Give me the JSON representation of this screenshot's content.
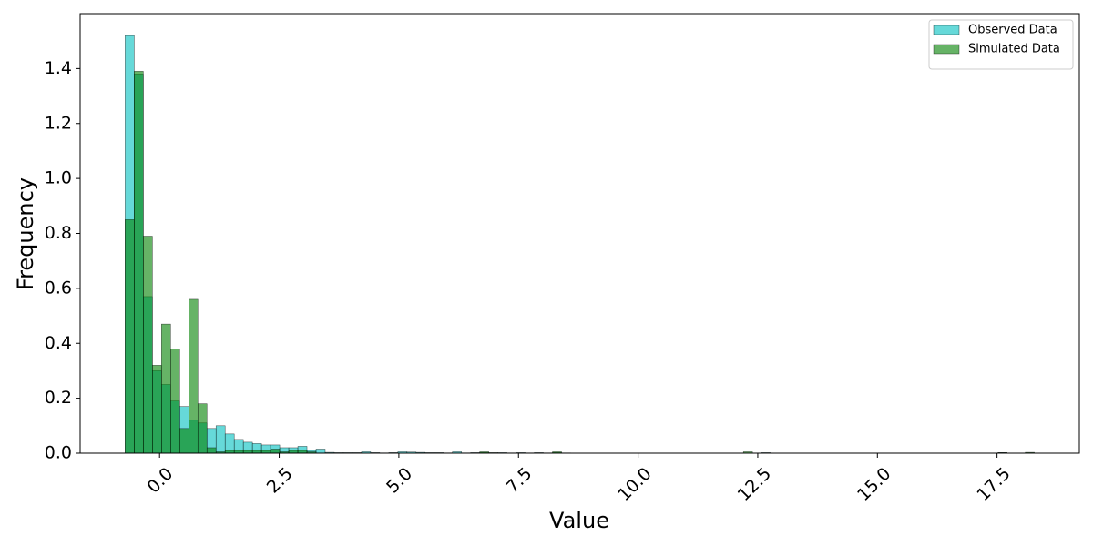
{
  "chart_data": {
    "type": "histogram",
    "x_label": "Value",
    "y_label": "Frequency",
    "bins": [
      -0.72,
      -0.53,
      -0.34,
      -0.15,
      0.04,
      0.23,
      0.42,
      0.61,
      0.8,
      0.99,
      1.18,
      1.37,
      1.56,
      1.75,
      1.94,
      2.13,
      2.32,
      2.51,
      2.7,
      2.89,
      3.08,
      3.27,
      3.46,
      3.65,
      3.84,
      4.03,
      4.22,
      4.41,
      4.6,
      4.79,
      4.98,
      5.17,
      5.36,
      5.55,
      5.74,
      5.93,
      6.12,
      6.31,
      6.5,
      6.69,
      6.88,
      7.07,
      7.26,
      7.45,
      7.64,
      7.83,
      8.02,
      8.21,
      8.4,
      8.59,
      8.78,
      8.97,
      9.16,
      9.35,
      9.54,
      9.73,
      9.92,
      10.11,
      10.3,
      10.49,
      10.68,
      10.87,
      11.06,
      11.25,
      11.44,
      11.63,
      11.82,
      12.01,
      12.2,
      12.39,
      12.58,
      12.77,
      12.96,
      13.15,
      13.34,
      13.53,
      13.72,
      13.91,
      14.1,
      14.29,
      14.48,
      14.67,
      14.86,
      15.05,
      15.24,
      15.43,
      15.62,
      15.81,
      16.0,
      16.19,
      16.38,
      16.57,
      16.76,
      16.95,
      17.14,
      17.33,
      17.52,
      17.71,
      17.9,
      18.09,
      18.28
    ],
    "series": [
      {
        "name": "Observed Data",
        "color": "#00bfbf",
        "values": [
          1.52,
          1.38,
          0.57,
          0.3,
          0.25,
          0.19,
          0.17,
          0.12,
          0.11,
          0.09,
          0.1,
          0.07,
          0.05,
          0.04,
          0.035,
          0.03,
          0.03,
          0.02,
          0.02,
          0.025,
          0.01,
          0.015,
          0.003,
          0.002,
          0.002,
          0.002,
          0.005,
          0.002,
          0.001,
          0.002,
          0.005,
          0.004,
          0.003,
          0.002,
          0.002,
          0.001,
          0.005,
          0.001,
          0.002,
          0.002,
          0.001,
          0.002,
          0.001,
          0.002,
          0.001,
          0.002,
          0.001,
          0.002,
          0.001,
          0,
          0,
          0,
          0,
          0,
          0,
          0,
          0,
          0,
          0,
          0,
          0,
          0,
          0,
          0,
          0,
          0,
          0,
          0,
          0,
          0,
          0.002,
          0,
          0,
          0,
          0,
          0,
          0,
          0,
          0,
          0,
          0,
          0,
          0,
          0,
          0,
          0,
          0,
          0,
          0,
          0,
          0,
          0,
          0,
          0,
          0,
          0,
          0.002,
          0,
          0,
          0
        ]
      },
      {
        "name": "Simulated Data",
        "color": "#008000",
        "values": [
          0.85,
          1.39,
          0.79,
          0.32,
          0.47,
          0.38,
          0.09,
          0.56,
          0.18,
          0.02,
          0.005,
          0.01,
          0.01,
          0.01,
          0.01,
          0.01,
          0.015,
          0.005,
          0.01,
          0.01,
          0.005,
          0,
          0,
          0,
          0,
          0,
          0,
          0,
          0,
          0,
          0,
          0,
          0,
          0,
          0,
          0,
          0,
          0,
          0,
          0.005,
          0.002,
          0,
          0,
          0,
          0,
          0,
          0,
          0.005,
          0,
          0,
          0,
          0,
          0,
          0,
          0,
          0,
          0,
          0,
          0,
          0,
          0,
          0,
          0,
          0,
          0,
          0,
          0,
          0,
          0.005,
          0,
          0,
          0,
          0,
          0,
          0,
          0,
          0,
          0,
          0,
          0,
          0,
          0,
          0,
          0,
          0,
          0,
          0,
          0,
          0,
          0,
          0,
          0,
          0,
          0,
          0,
          0,
          0.002,
          0,
          0,
          0.003
        ]
      }
    ],
    "xlim": [
      -1.66,
      19.22
    ],
    "xticks": [
      {
        "value": 0,
        "label": "0.0"
      },
      2.5,
      {
        "value": 5,
        "label": "5.0"
      },
      7.5,
      {
        "value": 10,
        "label": "10.0"
      },
      12.5,
      {
        "value": 15,
        "label": "15.0"
      },
      17.5
    ],
    "ylim": [
      0,
      1.6
    ],
    "yticks": [
      {
        "value": 0,
        "label": "0.0"
      },
      0.2,
      0.4,
      0.6,
      0.8,
      {
        "value": 1,
        "label": "1.0"
      },
      1.2,
      1.4
    ],
    "legend": "upper right"
  }
}
